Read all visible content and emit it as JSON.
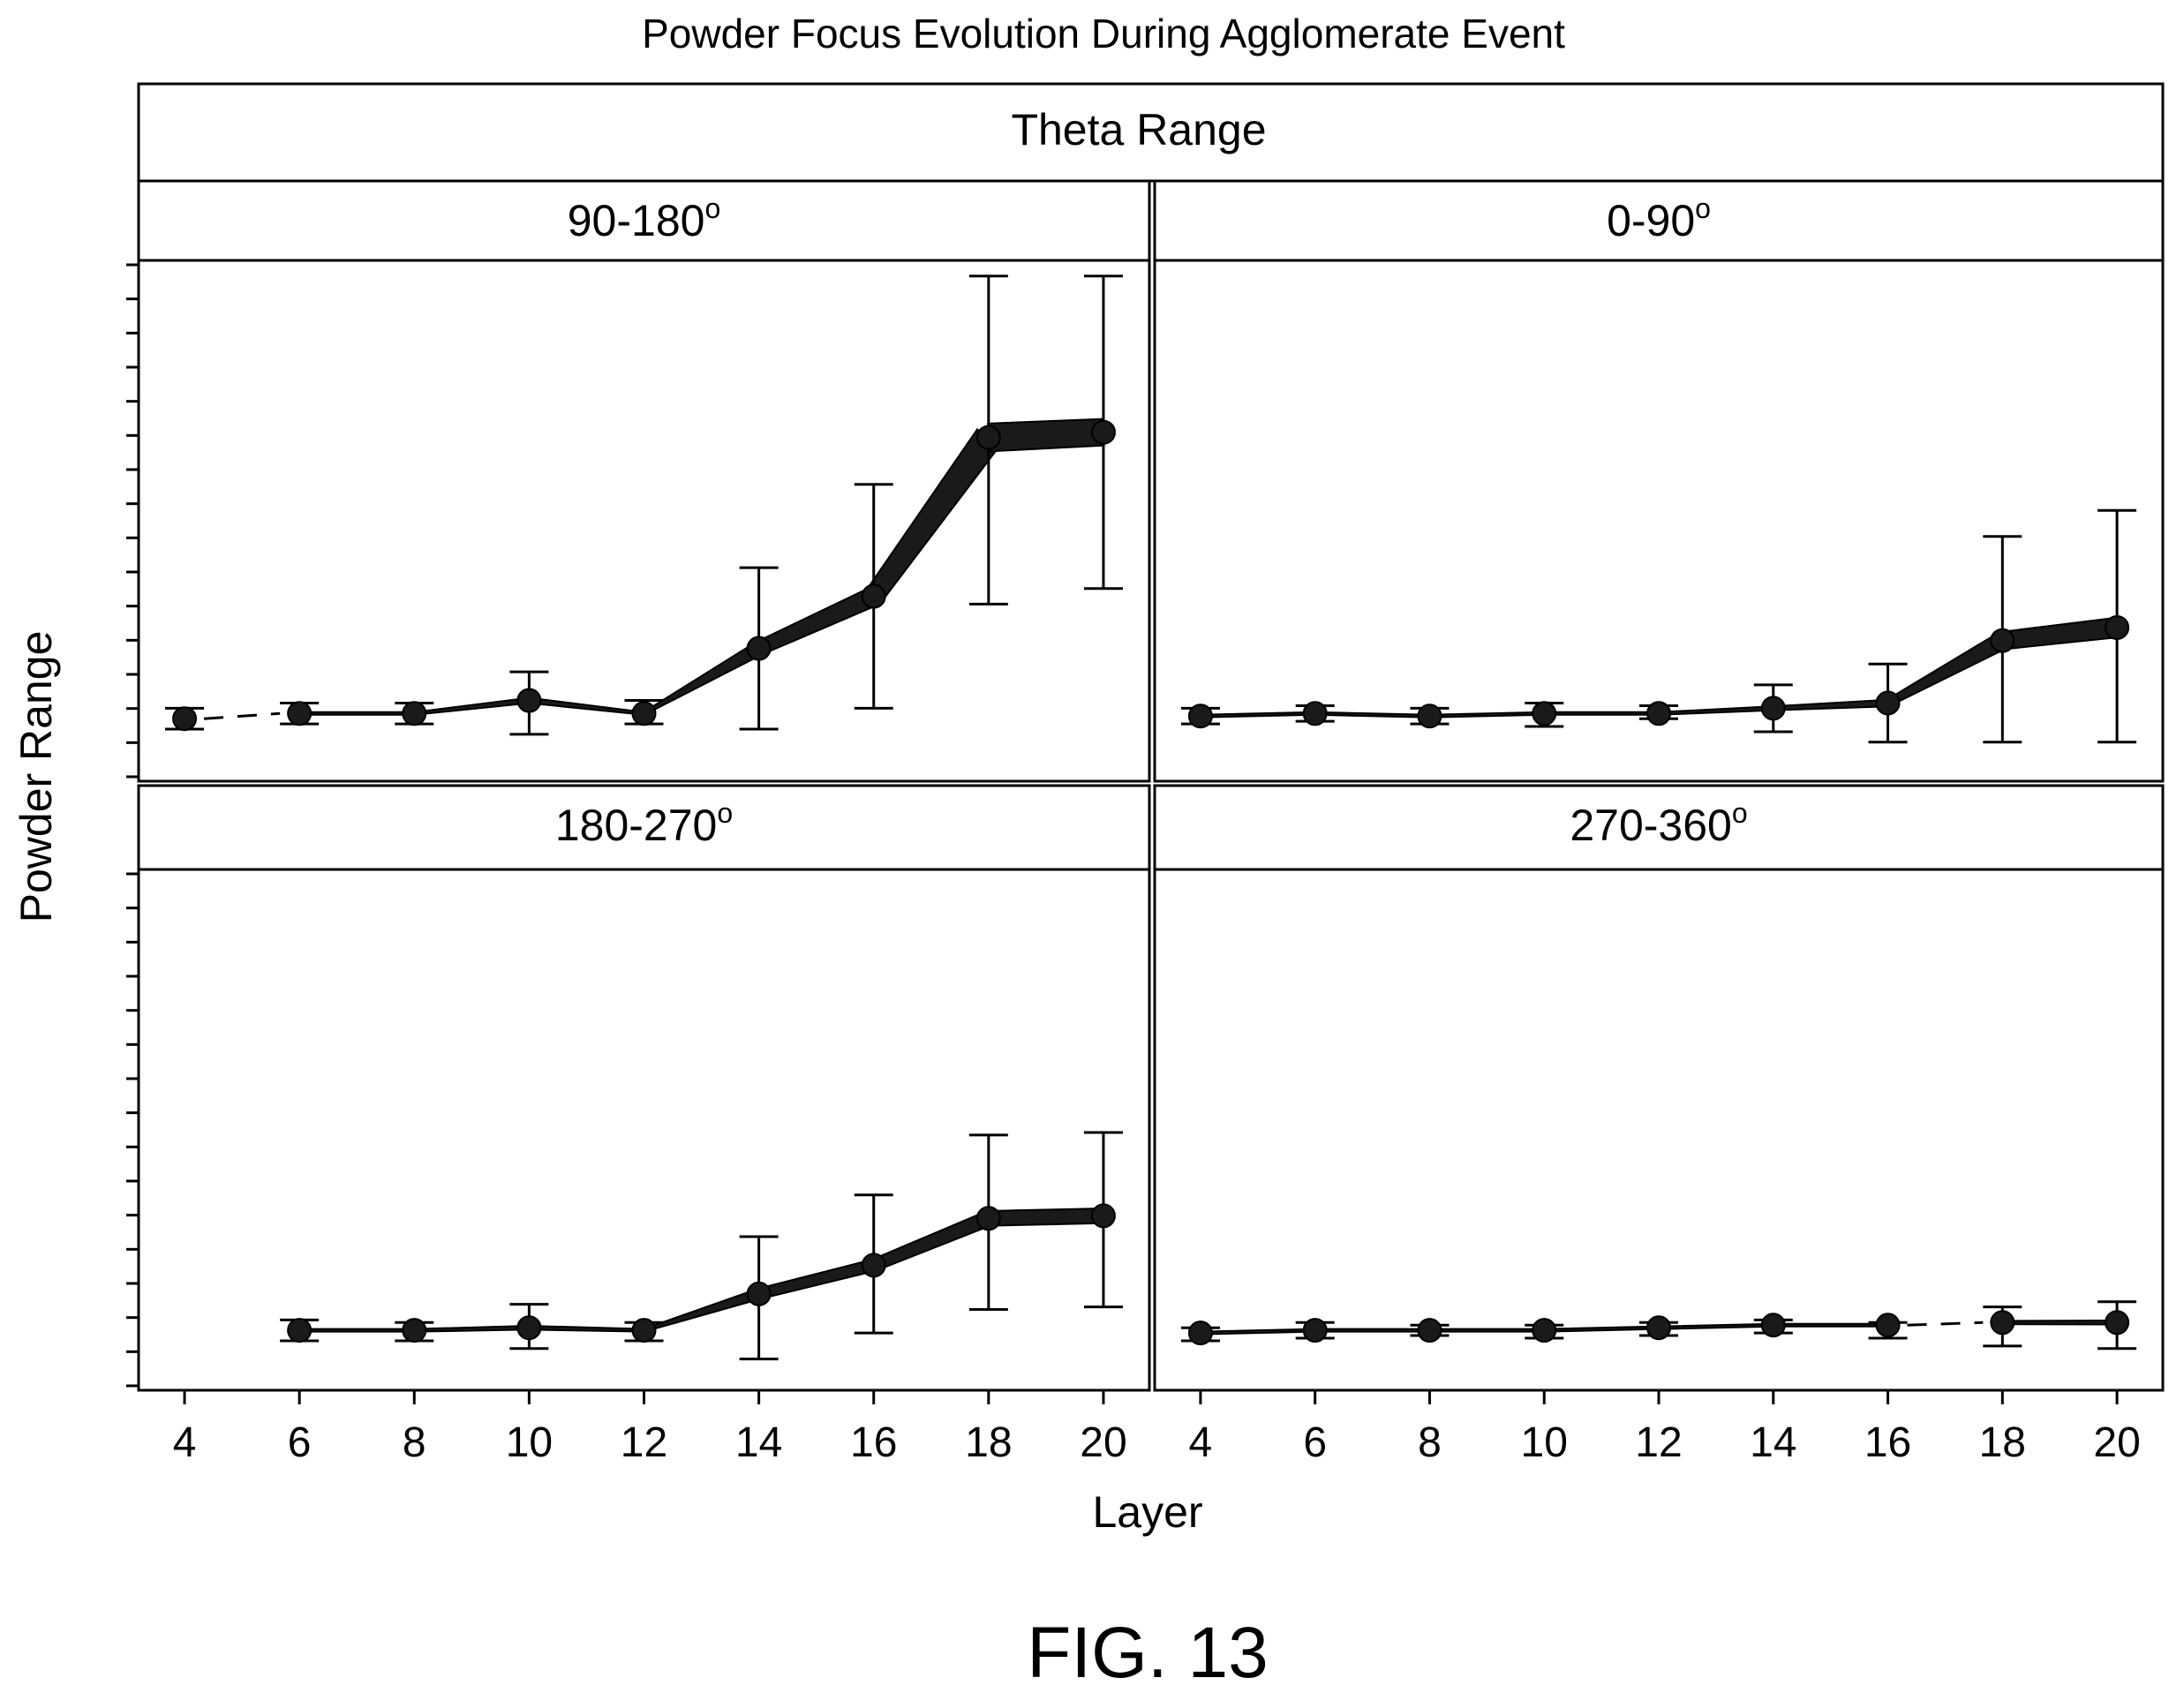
{
  "chart_data": {
    "type": "line",
    "title": "Powder Focus Evolution During Agglomerate Event",
    "group_label": "Theta Range",
    "xlabel": "Layer",
    "ylabel": "Powder Range",
    "figure_label": "FIG. 13",
    "x_ticks": [
      4,
      6,
      8,
      10,
      12,
      14,
      16,
      18,
      20
    ],
    "xlim": [
      3.2,
      20.8
    ],
    "ylim": [
      0,
      10
    ],
    "y_minor_ticks": 15,
    "y_tick_labels_shown": false,
    "grid": false,
    "panels": [
      {
        "label": "90-180°",
        "label_main": "90-180",
        "label_sup": "o",
        "position": "top-left",
        "points": [
          {
            "x": 4,
            "y": 1.2,
            "lo": 1.0,
            "hi": 1.4
          },
          {
            "x": 6,
            "y": 1.3,
            "lo": 1.1,
            "hi": 1.5
          },
          {
            "x": 8,
            "y": 1.3,
            "lo": 1.1,
            "hi": 1.5
          },
          {
            "x": 10,
            "y": 1.55,
            "lo": 0.9,
            "hi": 2.1
          },
          {
            "x": 12,
            "y": 1.3,
            "lo": 1.1,
            "hi": 1.55
          },
          {
            "x": 14,
            "y": 2.55,
            "lo": 1.0,
            "hi": 4.1
          },
          {
            "x": 16,
            "y": 3.55,
            "lo": 1.4,
            "hi": 5.7
          },
          {
            "x": 18,
            "y": 6.6,
            "lo": 3.4,
            "hi": 9.7
          },
          {
            "x": 20,
            "y": 6.7,
            "lo": 3.7,
            "hi": 9.7
          }
        ],
        "dashed_x": [
          [
            4,
            6
          ]
        ]
      },
      {
        "label": "0-90°",
        "label_main": "0-90",
        "label_sup": "o",
        "position": "top-right",
        "points": [
          {
            "x": 4,
            "y": 1.25,
            "lo": 1.1,
            "hi": 1.4
          },
          {
            "x": 6,
            "y": 1.3,
            "lo": 1.15,
            "hi": 1.45
          },
          {
            "x": 8,
            "y": 1.25,
            "lo": 1.1,
            "hi": 1.4
          },
          {
            "x": 10,
            "y": 1.3,
            "lo": 1.05,
            "hi": 1.5
          },
          {
            "x": 12,
            "y": 1.3,
            "lo": 1.2,
            "hi": 1.45
          },
          {
            "x": 14,
            "y": 1.4,
            "lo": 0.95,
            "hi": 1.85
          },
          {
            "x": 16,
            "y": 1.5,
            "lo": 0.75,
            "hi": 2.25
          },
          {
            "x": 18,
            "y": 2.7,
            "lo": 0.75,
            "hi": 4.7
          },
          {
            "x": 20,
            "y": 2.95,
            "lo": 0.75,
            "hi": 5.2
          }
        ],
        "dashed_x": []
      },
      {
        "label": "180-270°",
        "label_main": "180-270",
        "label_sup": "o",
        "position": "bottom-left",
        "points": [
          {
            "x": 6,
            "y": 1.15,
            "lo": 0.95,
            "hi": 1.35
          },
          {
            "x": 8,
            "y": 1.15,
            "lo": 0.95,
            "hi": 1.3
          },
          {
            "x": 10,
            "y": 1.2,
            "lo": 0.8,
            "hi": 1.65
          },
          {
            "x": 12,
            "y": 1.15,
            "lo": 0.95,
            "hi": 1.3
          },
          {
            "x": 14,
            "y": 1.85,
            "lo": 0.6,
            "hi": 2.95
          },
          {
            "x": 16,
            "y": 2.4,
            "lo": 1.1,
            "hi": 3.75
          },
          {
            "x": 18,
            "y": 3.3,
            "lo": 1.55,
            "hi": 4.9
          },
          {
            "x": 20,
            "y": 3.35,
            "lo": 1.6,
            "hi": 4.95
          }
        ],
        "dashed_x": []
      },
      {
        "label": "270-360°",
        "label_main": "270-360",
        "label_sup": "o",
        "position": "bottom-right",
        "points": [
          {
            "x": 4,
            "y": 1.1,
            "lo": 0.95,
            "hi": 1.2
          },
          {
            "x": 6,
            "y": 1.15,
            "lo": 1.0,
            "hi": 1.3
          },
          {
            "x": 8,
            "y": 1.15,
            "lo": 1.05,
            "hi": 1.25
          },
          {
            "x": 10,
            "y": 1.15,
            "lo": 1.0,
            "hi": 1.25
          },
          {
            "x": 12,
            "y": 1.2,
            "lo": 1.05,
            "hi": 1.3
          },
          {
            "x": 14,
            "y": 1.25,
            "lo": 1.1,
            "hi": 1.35
          },
          {
            "x": 16,
            "y": 1.25,
            "lo": 1.0,
            "hi": 1.3
          },
          {
            "x": 18,
            "y": 1.3,
            "lo": 0.85,
            "hi": 1.6
          },
          {
            "x": 20,
            "y": 1.3,
            "lo": 0.8,
            "hi": 1.7
          }
        ],
        "dashed_x": [
          [
            16,
            18
          ]
        ]
      }
    ]
  }
}
